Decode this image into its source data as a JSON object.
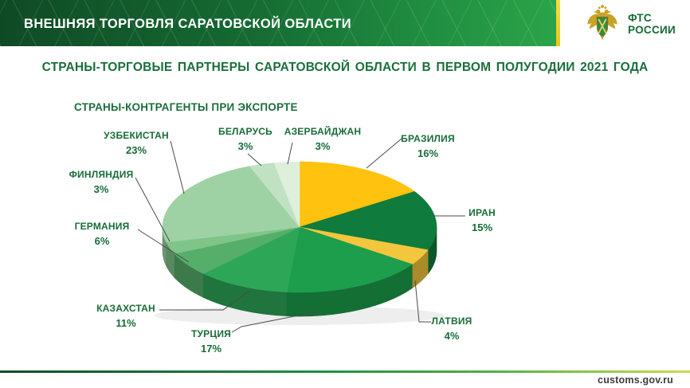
{
  "header": {
    "title": "ВНЕШНЯЯ ТОРГОВЛЯ САРАТОВСКОЙ ОБЛАСТИ",
    "logo": {
      "line1": "ФТС",
      "line2": "РОССИИ"
    }
  },
  "page_title": "СТРАНЫ-ТОРГОВЫЕ ПАРТНЕРЫ САРАТОВСКОЙ ОБЛАСТИ В ПЕРВОМ ПОЛУГОДИИ 2021 ГОДА",
  "chart_data": {
    "type": "pie",
    "style": "3d",
    "title": "СТРАНЫ-КОНТРАГЕНТЫ ПРИ ЭКСПОРТЕ",
    "unit": "%",
    "start_angle_deg": 0,
    "direction": "clockwise",
    "slices": [
      {
        "label": "БРАЗИЛИЯ",
        "value": 16,
        "color": "#FFC20E"
      },
      {
        "label": "ИРАН",
        "value": 15,
        "color": "#0F7C3D"
      },
      {
        "label": "ЛАТВИЯ",
        "value": 4,
        "color": "#F2C63D"
      },
      {
        "label": "ТУРЦИЯ",
        "value": 17,
        "color": "#1C9E4C"
      },
      {
        "label": "КАЗАХСТАН",
        "value": 11,
        "color": "#2EA658"
      },
      {
        "label": "ГЕРМАНИЯ",
        "value": 6,
        "color": "#56AE6B"
      },
      {
        "label": "ФИНЛЯНДИЯ",
        "value": 3,
        "color": "#7FC489"
      },
      {
        "label": "УЗБЕКИСТАН",
        "value": 23,
        "color": "#9ED2A5"
      },
      {
        "label": "БЕЛАРУСЬ",
        "value": 3,
        "color": "#C0E2C2"
      },
      {
        "label": "АЗЕРБАЙДЖАН",
        "value": 3,
        "color": "#DEEFDC"
      }
    ]
  },
  "footer": {
    "url": "customs.gov.ru"
  },
  "colors": {
    "header_green_dark": "#0F4A25",
    "header_green_bright": "#2BA449",
    "accent_yellow": "#E9C51B",
    "title_green": "#1B6E3C",
    "label_green": "#186C38",
    "callout_line": "#4A4A4A",
    "footer_text": "#3C3C3C"
  }
}
